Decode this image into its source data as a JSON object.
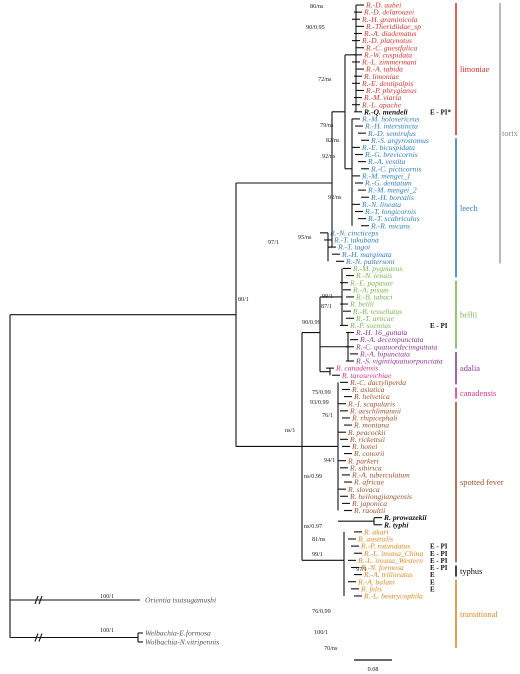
{
  "colors": {
    "limoniae": "#d9352e",
    "leech": "#2f7fc1",
    "bellii": "#79b84a",
    "adalia": "#8e3a94",
    "canadensis": "#d8338f",
    "spotted_fever": "#a0522d",
    "typhus": "#111111",
    "transitional": "#e08a1e",
    "outgroup": "#555555",
    "torix": "#888888"
  },
  "clades": [
    {
      "key": "limoniae",
      "label": "limoniae",
      "from": 0,
      "to": 18
    },
    {
      "key": "leech",
      "label": "leech",
      "from": 19,
      "to": 38
    },
    {
      "key": "bellii",
      "label": "bellii",
      "from": 39,
      "to": 48
    },
    {
      "key": "adalia",
      "label": "adalia",
      "from": 49,
      "to": 53
    },
    {
      "key": "canadensis",
      "label": "canadensis",
      "from": 54,
      "to": 55
    },
    {
      "key": "spotted_fever",
      "label": "spotted fever",
      "from": 56,
      "to": 78
    },
    {
      "key": "typhus",
      "label": "typhus",
      "from": 79,
      "to": 80
    },
    {
      "key": "transitional",
      "label": "transitional",
      "from": 81,
      "to": 90
    }
  ],
  "torix_label": "torix",
  "tips": [
    {
      "label": "R.-D. aubei",
      "group": "limoniae"
    },
    {
      "label": "R.-D. delarouzei",
      "group": "limoniae"
    },
    {
      "label": "R.-H. graminicola",
      "group": "limoniae"
    },
    {
      "label": "R.-Theridiidae_sp",
      "group": "limoniae"
    },
    {
      "label": "R.-A. diadematus",
      "group": "limoniae"
    },
    {
      "label": "R.-D. platynotus",
      "group": "limoniae"
    },
    {
      "label": "R.-C. guestfalica",
      "group": "limoniae"
    },
    {
      "label": "R.-W. cuspidata",
      "group": "limoniae"
    },
    {
      "label": "R.-L. zimmermani",
      "group": "limoniae"
    },
    {
      "label": "R.-A. tabida",
      "group": "limoniae"
    },
    {
      "label": "R. limoniae",
      "group": "limoniae"
    },
    {
      "label": "R.-E. dentipalpis",
      "group": "limoniae"
    },
    {
      "label": "R.-P. phrygianus",
      "group": "limoniae"
    },
    {
      "label": "R.-M. viaria",
      "group": "limoniae"
    },
    {
      "label": "R.-L. apache",
      "group": "limoniae"
    },
    {
      "label": "R.-Q. mendeli",
      "group": "typhus",
      "epi": "E - PI*",
      "bold": true
    },
    {
      "label": "R.-M. holosericeus",
      "group": "leech"
    },
    {
      "label": "R.-H. interstincta",
      "group": "leech"
    },
    {
      "label": "R.-D. semirufus",
      "group": "leech"
    },
    {
      "label": "R.-S. argyrostomus",
      "group": "leech"
    },
    {
      "label": "R.-E. bicuspidata",
      "group": "leech"
    },
    {
      "label": "R.-G. brevicornis",
      "group": "leech"
    },
    {
      "label": "R.-A. vestita",
      "group": "leech"
    },
    {
      "label": "R.-C. picticornis",
      "group": "leech"
    },
    {
      "label": "R.-M. mengei_1",
      "group": "leech"
    },
    {
      "label": "R.-G. dentatum",
      "group": "leech"
    },
    {
      "label": "R.-M. mengei_2",
      "group": "leech"
    },
    {
      "label": "R.-H. borealis",
      "group": "leech"
    },
    {
      "label": "R.-N. lineata",
      "group": "leech"
    },
    {
      "label": "R.-T. longicornis",
      "group": "leech"
    },
    {
      "label": "R.-T. scabriculus",
      "group": "leech"
    },
    {
      "label": "R.-R. micans",
      "group": "leech"
    },
    {
      "label": "R.-N. cincticeps",
      "group": "leech"
    },
    {
      "label": "R.-T. takubana",
      "group": "leech"
    },
    {
      "label": "R.-T. tagoi",
      "group": "leech"
    },
    {
      "label": "R.-H. marginata",
      "group": "leech"
    },
    {
      "label": "R.-N. pattersoni",
      "group": "leech"
    },
    {
      "label": "R.-M. pygmaeus",
      "group": "bellii"
    },
    {
      "label": "R.-N. tenuis",
      "group": "bellii"
    },
    {
      "label": "R.-E. papasae",
      "group": "bellii"
    },
    {
      "label": "R.-A. pisum",
      "group": "bellii"
    },
    {
      "label": "R.-B. tabaci",
      "group": "bellii"
    },
    {
      "label": "R. bellii",
      "group": "bellii"
    },
    {
      "label": "R.-B. tessellatus",
      "group": "bellii"
    },
    {
      "label": "R.-T. urticae",
      "group": "bellii"
    },
    {
      "label": "R.-P. soemias",
      "group": "bellii",
      "epi": "E - PI"
    },
    {
      "label": "R.-H. 16_guttata",
      "group": "adalia"
    },
    {
      "label": "R.-A. decempunctata",
      "group": "adalia"
    },
    {
      "label": "R.-C. quatuordecimguttata",
      "group": "adalia"
    },
    {
      "label": "R.-A. bipunctata",
      "group": "adalia"
    },
    {
      "label": "R.-S. vigintiquatuorpunctata",
      "group": "adalia"
    },
    {
      "label": "R. canadensis",
      "group": "canadensis"
    },
    {
      "label": "R. tarasevichiae",
      "group": "canadensis"
    },
    {
      "label": "R.-C. dactyliperda",
      "group": "spotted_fever"
    },
    {
      "label": "R. asiatica",
      "group": "spotted_fever"
    },
    {
      "label": "R. helvetica",
      "group": "spotted_fever"
    },
    {
      "label": "R.-I. scapularis",
      "group": "spotted_fever"
    },
    {
      "label": "R. aeschlimannii",
      "group": "spotted_fever"
    },
    {
      "label": "R. rhipicephali",
      "group": "spotted_fever"
    },
    {
      "label": "R. montana",
      "group": "spotted_fever"
    },
    {
      "label": "R. peacockii",
      "group": "spotted_fever"
    },
    {
      "label": "R. rickettsii",
      "group": "spotted_fever"
    },
    {
      "label": "R. honei",
      "group": "spotted_fever"
    },
    {
      "label": "R. conorii",
      "group": "spotted_fever"
    },
    {
      "label": "R. parkeri",
      "group": "spotted_fever"
    },
    {
      "label": "R. sibirica",
      "group": "spotted_fever"
    },
    {
      "label": "R.-A. tuberculatum",
      "group": "spotted_fever"
    },
    {
      "label": "R. africae",
      "group": "spotted_fever"
    },
    {
      "label": "R. slovaca",
      "group": "spotted_fever"
    },
    {
      "label": "R. heilongjiangensis",
      "group": "spotted_fever"
    },
    {
      "label": "R. japonica",
      "group": "spotted_fever"
    },
    {
      "label": "R. raoultii",
      "group": "spotted_fever"
    },
    {
      "label": "R. prowazekii",
      "group": "typhus",
      "bold": true
    },
    {
      "label": "R. typhi",
      "group": "typhus",
      "bold": true
    },
    {
      "label": "R. akari",
      "group": "transitional"
    },
    {
      "label": "R. australis",
      "group": "transitional"
    },
    {
      "label": "R.-P. rotundatus",
      "group": "transitional",
      "epi": "E - PI"
    },
    {
      "label": "R.-L. invasa_China",
      "group": "transitional",
      "epi": "E - PI"
    },
    {
      "label": "R.-L. invasa_Western",
      "group": "transitional",
      "epi": "E - PI"
    },
    {
      "label": "R.-N. formosa",
      "group": "transitional",
      "epi": "E - PI"
    },
    {
      "label": "R.-A. trilineatus",
      "group": "transitional",
      "epi": "E"
    },
    {
      "label": "R.-A. balani",
      "group": "transitional",
      "epi": "E"
    },
    {
      "label": "R. felis",
      "group": "transitional",
      "epi": "E"
    },
    {
      "label": "R.-L. bostrycophila",
      "group": "transitional"
    }
  ],
  "outgroups": [
    {
      "label": "Orientia tsutsugamushi"
    },
    {
      "label": "Welbachia-E.formosa"
    },
    {
      "label": "Wolbachia-N.vitripennis"
    }
  ],
  "supports": [
    {
      "text": "86/ns"
    },
    {
      "text": "90/0.95"
    },
    {
      "text": "72/ns"
    },
    {
      "text": "79/ns"
    },
    {
      "text": "82/ns"
    },
    {
      "text": "92/ns"
    },
    {
      "text": "92/ns"
    },
    {
      "text": "95/ns"
    },
    {
      "text": "97/1"
    },
    {
      "text": "80/1"
    },
    {
      "text": "99/1"
    },
    {
      "text": "87/1"
    },
    {
      "text": "90/0.99"
    },
    {
      "text": "75/0.99"
    },
    {
      "text": "93/0.99"
    },
    {
      "text": "76/1"
    },
    {
      "text": "ns/1"
    },
    {
      "text": "94/1"
    },
    {
      "text": "ns/0.99"
    },
    {
      "text": "ns/0.97"
    },
    {
      "text": "81/ns"
    },
    {
      "text": "99/1"
    },
    {
      "text": "97/1"
    },
    {
      "text": "76/0.99"
    },
    {
      "text": "100/1"
    },
    {
      "text": "70/ns"
    },
    {
      "text": "100/1"
    },
    {
      "text": "100/1"
    }
  ],
  "scale_bar": {
    "label": "0.08"
  }
}
